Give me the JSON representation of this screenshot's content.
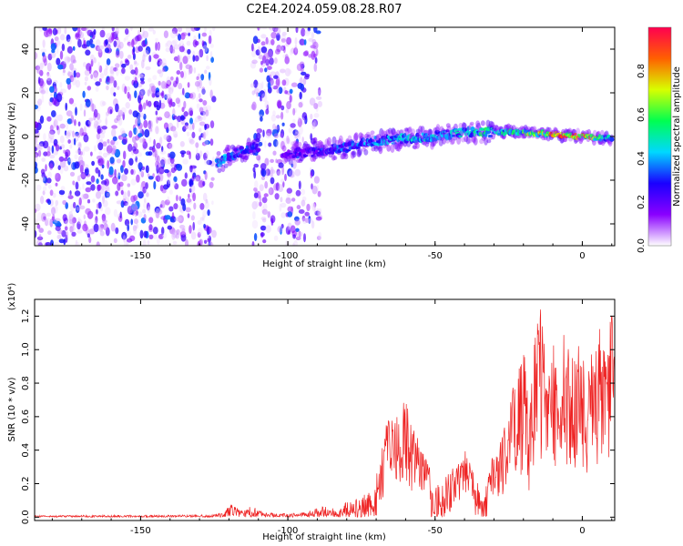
{
  "title": "C2E4.2024.059.08.28.R07",
  "chart_data": [
    {
      "type": "heatmap",
      "xlabel": "Height of straight line (km)",
      "ylabel": "Frequency (Hz)",
      "xlim": [
        -186,
        11
      ],
      "ylim": [
        -50,
        50
      ],
      "x_ticks": [
        -150,
        -100,
        -50,
        0
      ],
      "x_tick_labels": [
        "-150",
        "-100",
        "-50",
        "0"
      ],
      "y_ticks": [
        -40,
        -20,
        0,
        20,
        40
      ],
      "y_tick_labels": [
        "-40",
        "-20",
        "0",
        "20",
        "40"
      ],
      "colorbar": {
        "label": "Normalized spectral amplitude",
        "range": [
          0,
          1
        ],
        "ticks": [
          0.0,
          0.2,
          0.4,
          0.6,
          0.8
        ],
        "tick_labels": [
          "0.0",
          "0.2",
          "0.4",
          "0.6",
          "0.8"
        ],
        "colors": [
          "#ffffff",
          "#8a00ff",
          "#1a00ff",
          "#00d8ff",
          "#00ff50",
          "#d8ff00",
          "#ff6000",
          "#ff0050"
        ]
      },
      "noise_regions": [
        {
          "x_range": [
            -186,
            -125
          ],
          "density": 0.9
        },
        {
          "x_range": [
            -112,
            -89
          ],
          "density": 0.75
        }
      ],
      "signal_trace": [
        {
          "x": -124,
          "freq": -12,
          "amp": 0.45
        },
        {
          "x": -118,
          "freq": -8,
          "amp": 0.35
        },
        {
          "x": -112,
          "freq": -5,
          "amp": 0.3
        },
        {
          "x": -100,
          "freq": -8,
          "amp": 0.2
        },
        {
          "x": -90,
          "freq": -7,
          "amp": 0.3
        },
        {
          "x": -80,
          "freq": -5,
          "amp": 0.35
        },
        {
          "x": -70,
          "freq": -2,
          "amp": 0.4
        },
        {
          "x": -60,
          "freq": -1,
          "amp": 0.45
        },
        {
          "x": -50,
          "freq": 0,
          "amp": 0.45
        },
        {
          "x": -40,
          "freq": 2,
          "amp": 0.45
        },
        {
          "x": -30,
          "freq": 2,
          "amp": 0.55
        },
        {
          "x": -20,
          "freq": 2,
          "amp": 0.55
        },
        {
          "x": -10,
          "freq": 1,
          "amp": 0.85
        },
        {
          "x": 0,
          "freq": 0,
          "amp": 0.9
        },
        {
          "x": 10,
          "freq": -1,
          "amp": 0.4
        }
      ]
    },
    {
      "type": "line",
      "xlabel": "Height of straight line (km)",
      "ylabel": "SNR (10 * v/v)",
      "y_multiplier_label": "(x10⁴)",
      "xlim": [
        -186,
        11
      ],
      "ylim": [
        -0.02,
        1.3
      ],
      "x_ticks": [
        -150,
        -100,
        -50,
        0
      ],
      "x_tick_labels": [
        "-150",
        "-100",
        "-50",
        "0"
      ],
      "y_ticks": [
        0.0,
        0.2,
        0.4,
        0.6,
        0.8,
        1.0,
        1.2
      ],
      "y_tick_labels": [
        "0.0",
        "0.2",
        "0.4",
        "0.6",
        "0.8",
        "1.0",
        "1.2"
      ],
      "series": [
        {
          "color": "#ee2222",
          "envelope": {
            "x": [
              -186,
              -126,
              -122,
              -119,
              -116,
              -112,
              -108,
              -100,
              -92,
              -88,
              -84,
              -80,
              -76,
              -72,
              -70,
              -68,
              -66,
              -64,
              -62,
              -60,
              -58,
              -55,
              -52,
              -48,
              -44,
              -40,
              -36,
              -34,
              -32,
              -30,
              -28,
              -26,
              -24,
              -22,
              -20,
              -18,
              -16,
              -14,
              -12,
              -10,
              -8,
              -6,
              -4,
              -2,
              0,
              2,
              4,
              6,
              8,
              10,
              11
            ],
            "y": [
              0.01,
              0.015,
              0.03,
              0.08,
              0.04,
              0.07,
              0.03,
              0.02,
              0.04,
              0.07,
              0.05,
              0.09,
              0.12,
              0.15,
              0.25,
              0.42,
              0.62,
              0.7,
              0.55,
              0.75,
              0.6,
              0.45,
              0.3,
              0.2,
              0.3,
              0.42,
              0.25,
              0.1,
              0.28,
              0.38,
              0.5,
              0.55,
              0.75,
              0.9,
              1.05,
              0.6,
              1.1,
              1.28,
              0.9,
              1.1,
              0.7,
              1.15,
              0.95,
              1.0,
              1.1,
              0.85,
              1.1,
              1.2,
              0.95,
              1.25,
              1.15
            ]
          }
        }
      ]
    }
  ]
}
